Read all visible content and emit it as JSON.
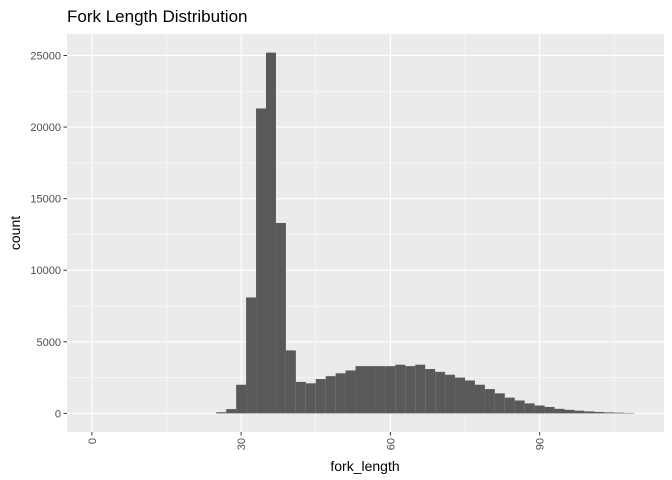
{
  "chart_data": {
    "type": "bar",
    "title": "Fork Length Distribution",
    "xlabel": "fork_length",
    "ylabel": "count",
    "xlim": [
      -5,
      115
    ],
    "ylim": [
      -1300,
      26500
    ],
    "x_ticks": [
      0,
      30,
      60,
      90
    ],
    "x_tick_labels": [
      "0",
      "30",
      "60",
      "90"
    ],
    "y_ticks": [
      0,
      5000,
      10000,
      15000,
      20000,
      25000
    ],
    "y_tick_labels": [
      "0",
      "5000",
      "10000",
      "15000",
      "20000",
      "25000"
    ],
    "x_minor_ticks": [
      15,
      45,
      75,
      105
    ],
    "y_minor_ticks": [
      2500,
      7500,
      12500,
      17500,
      22500
    ],
    "grid": true,
    "bin_width": 2,
    "bin_centers": [
      26,
      28,
      30,
      32,
      34,
      36,
      38,
      40,
      42,
      44,
      46,
      48,
      50,
      52,
      54,
      56,
      58,
      60,
      62,
      64,
      66,
      68,
      70,
      72,
      74,
      76,
      78,
      80,
      82,
      84,
      86,
      88,
      90,
      92,
      94,
      96,
      98,
      100,
      102,
      104,
      106,
      108
    ],
    "values": [
      80,
      300,
      2000,
      8100,
      21300,
      25200,
      13300,
      4400,
      2200,
      2100,
      2400,
      2600,
      2800,
      3000,
      3300,
      3300,
      3300,
      3300,
      3400,
      3300,
      3400,
      3100,
      2900,
      2700,
      2500,
      2300,
      2000,
      1700,
      1400,
      1100,
      900,
      700,
      550,
      450,
      320,
      250,
      190,
      140,
      100,
      70,
      50,
      30
    ],
    "colors": {
      "panel": "#ebebeb",
      "grid_major": "#ffffff",
      "bar": "#595959",
      "tick": "#333333"
    }
  }
}
